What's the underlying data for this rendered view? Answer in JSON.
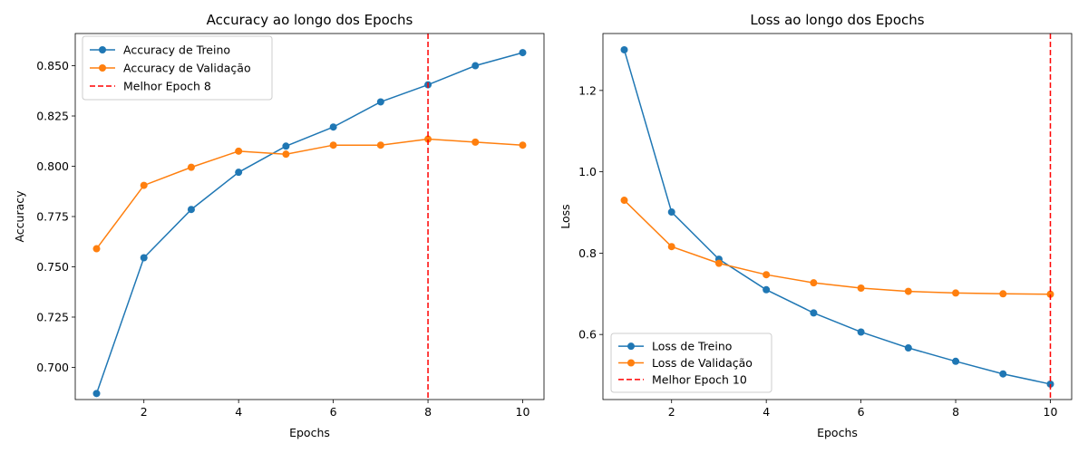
{
  "chart_data": [
    {
      "type": "line",
      "title": "Accuracy ao longo dos Epochs",
      "xlabel": "Epochs",
      "ylabel": "Accuracy",
      "xlim": [
        0.55,
        10.45
      ],
      "ylim": [
        0.684,
        0.866
      ],
      "xticks": [
        2,
        4,
        6,
        8,
        10
      ],
      "yticks": [
        0.7,
        0.725,
        0.75,
        0.775,
        0.8,
        0.825,
        0.85
      ],
      "ytick_labels": [
        "0.700",
        "0.725",
        "0.750",
        "0.775",
        "0.800",
        "0.825",
        "0.850"
      ],
      "grid": false,
      "legend": "top-left",
      "x": [
        1,
        2,
        3,
        4,
        5,
        6,
        7,
        8,
        9,
        10
      ],
      "series": [
        {
          "name": "Accuracy de Treino",
          "color": "#1f77b4",
          "values": [
            0.687,
            0.7545,
            0.7785,
            0.797,
            0.81,
            0.8195,
            0.832,
            0.8405,
            0.85,
            0.8565
          ]
        },
        {
          "name": "Accuracy de Validação",
          "color": "#ff7f0e",
          "values": [
            0.759,
            0.7905,
            0.7995,
            0.8075,
            0.806,
            0.8105,
            0.8105,
            0.8135,
            0.812,
            0.8105
          ]
        }
      ],
      "vline": {
        "name": "Melhor Epoch 8",
        "x": 8,
        "color": "#ff0000"
      }
    },
    {
      "type": "line",
      "title": "Loss ao longo dos Epochs",
      "xlabel": "Epochs",
      "ylabel": "Loss",
      "xlim": [
        0.55,
        10.45
      ],
      "ylim": [
        0.44,
        1.34
      ],
      "xticks": [
        2,
        4,
        6,
        8,
        10
      ],
      "yticks": [
        0.6,
        0.8,
        1.0,
        1.2
      ],
      "ytick_labels": [
        "0.6",
        "0.8",
        "1.0",
        "1.2"
      ],
      "grid": false,
      "legend": "bottom-left",
      "x": [
        1,
        2,
        3,
        4,
        5,
        6,
        7,
        8,
        9,
        10
      ],
      "series": [
        {
          "name": "Loss de Treino",
          "color": "#1f77b4",
          "values": [
            1.3,
            0.901,
            0.785,
            0.71,
            0.653,
            0.606,
            0.567,
            0.534,
            0.503,
            0.478
          ]
        },
        {
          "name": "Loss de Validação",
          "color": "#ff7f0e",
          "values": [
            0.93,
            0.816,
            0.775,
            0.747,
            0.727,
            0.714,
            0.706,
            0.702,
            0.7,
            0.699
          ]
        }
      ],
      "vline": {
        "name": "Melhor Epoch 10",
        "x": 10,
        "color": "#ff0000"
      }
    }
  ]
}
